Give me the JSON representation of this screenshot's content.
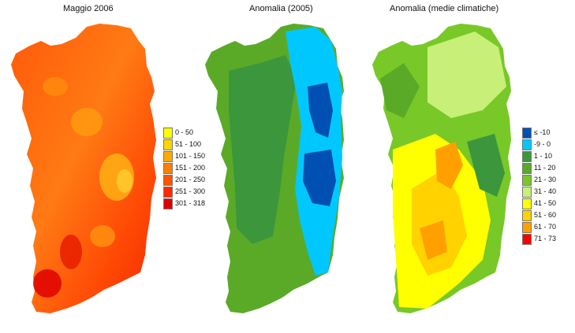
{
  "panels": [
    {
      "title": "Maggio 2006",
      "legend": [
        {
          "label": "0 - 50",
          "color": "#ffff00"
        },
        {
          "label": "51 - 100",
          "color": "#ffd400"
        },
        {
          "label": "101 - 150",
          "color": "#ffaa00"
        },
        {
          "label": "151 - 200",
          "color": "#ff8000"
        },
        {
          "label": "201 - 250",
          "color": "#ff5500"
        },
        {
          "label": "251 - 300",
          "color": "#ff2a00"
        },
        {
          "label": "301 - 318",
          "color": "#e00000"
        }
      ]
    },
    {
      "title": "Anomalia (2005)",
      "legend": []
    },
    {
      "title": "Anomalia (medie climatiche)",
      "legend": [
        {
          "label": "≤ -10",
          "color": "#0050b4"
        },
        {
          "label": "-9 - 0",
          "color": "#00c8ff"
        },
        {
          "label": "1 - 10",
          "color": "#3c963c"
        },
        {
          "label": "11 - 20",
          "color": "#5aaa28"
        },
        {
          "label": "21 - 30",
          "color": "#78c828"
        },
        {
          "label": "31 - 40",
          "color": "#c8f078"
        },
        {
          "label": "41 - 50",
          "color": "#ffff00"
        },
        {
          "label": "51 - 60",
          "color": "#ffd200"
        },
        {
          "label": "61 - 70",
          "color": "#ffa000"
        },
        {
          "label": "71 - 73",
          "color": "#ff0000"
        }
      ]
    }
  ]
}
